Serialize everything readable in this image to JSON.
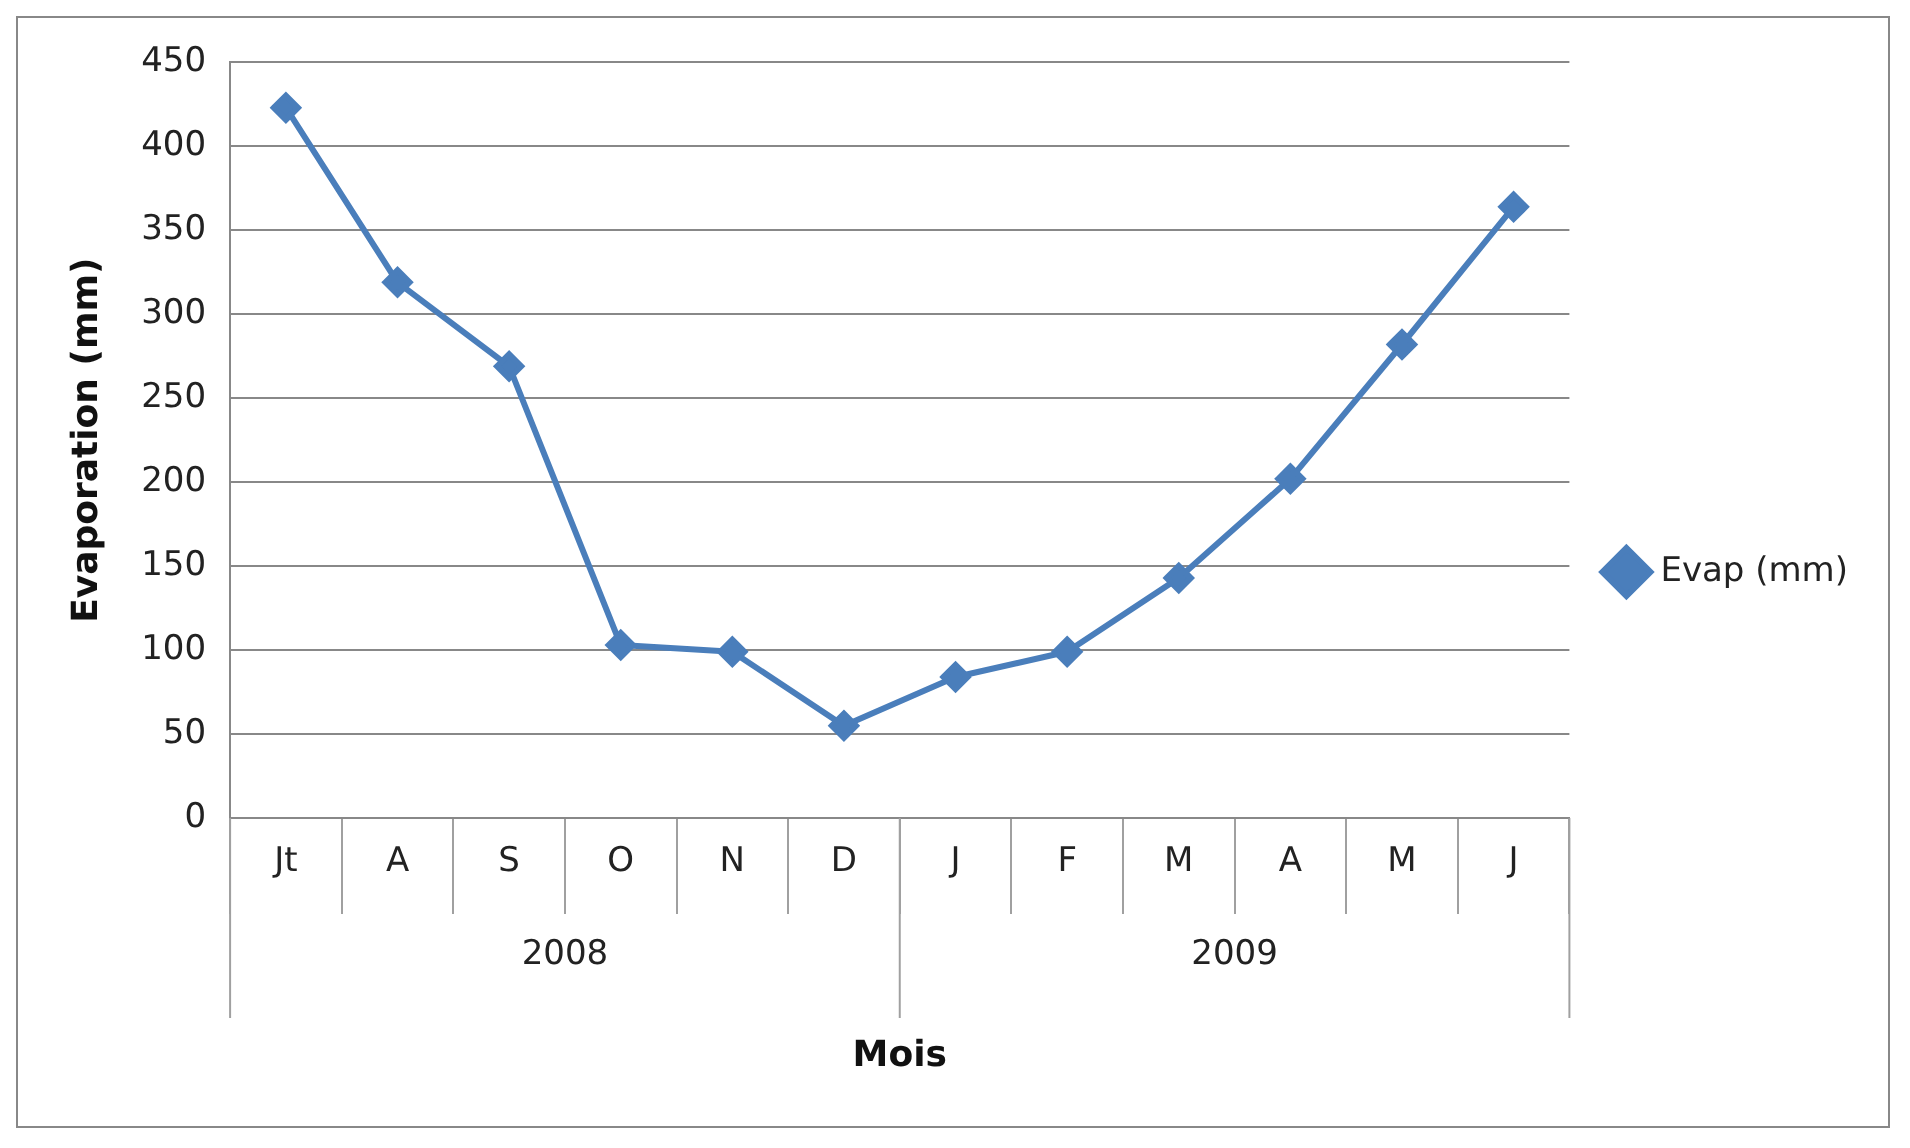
{
  "chart_data": {
    "type": "line",
    "xlabel": "Mois",
    "ylabel": "Evaporation (mm)",
    "categories": [
      "Jt",
      "A",
      "S",
      "O",
      "N",
      "D",
      "J",
      "F",
      "M",
      "A",
      "M",
      "J"
    ],
    "series": [
      {
        "name": "Evap (mm)",
        "color": "#4a7ebb",
        "values": [
          423,
          319,
          269,
          103,
          99,
          55,
          84,
          99,
          143,
          202,
          282,
          364
        ]
      }
    ],
    "ylim": [
      0,
      450
    ],
    "yticks": [
      0,
      50,
      100,
      150,
      200,
      250,
      300,
      350,
      400,
      450
    ],
    "grid": "y",
    "legend": "right",
    "marker": "diamond",
    "line_style": "solid",
    "annotations": [
      "2008",
      "2009"
    ]
  }
}
